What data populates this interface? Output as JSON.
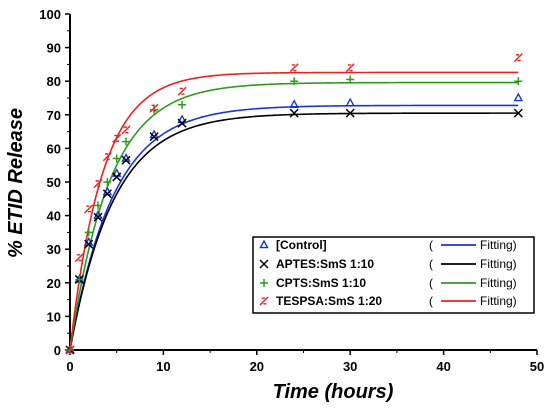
{
  "chart_data": {
    "type": "scatter",
    "title": "",
    "xlabel": "Time (hours)",
    "ylabel": "% ETID Release",
    "xlim": [
      0,
      50
    ],
    "ylim": [
      0,
      100
    ],
    "xticks": [
      0,
      10,
      20,
      30,
      40,
      50
    ],
    "yticks": [
      0,
      10,
      20,
      30,
      40,
      50,
      60,
      70,
      80,
      90,
      100
    ],
    "grid": false,
    "legend_position": "bottom-right",
    "x": [
      0,
      1,
      2,
      3,
      4,
      5,
      6,
      9,
      12,
      24,
      30,
      48
    ],
    "series": [
      {
        "name": "[Control]",
        "fit_label": "Fitting",
        "marker": "triangle",
        "color": "#1a35d6",
        "values": [
          0,
          21,
          32,
          40,
          47,
          52.5,
          57,
          64,
          68.5,
          73,
          73.5,
          75
        ],
        "fit_plateau": 72.8,
        "fit_rate": 0.215
      },
      {
        "name": "APTES:SmS 1:10",
        "fit_label": "Fitting",
        "marker": "x",
        "color": "#000000",
        "values": [
          0,
          21,
          31.5,
          39.5,
          46.5,
          51.5,
          56.5,
          63.5,
          67.5,
          70.5,
          70.5,
          70.5
        ],
        "fit_plateau": 70.5,
        "fit_rate": 0.215
      },
      {
        "name": "CPTS:SmS 1:10",
        "fit_label": "Fitting",
        "marker": "plus",
        "color": "#2f9a1c",
        "values": [
          0,
          21,
          35,
          43,
          50,
          57,
          62,
          71.5,
          73,
          80,
          80.5,
          80
        ],
        "fit_plateau": 79.6,
        "fit_rate": 0.235
      },
      {
        "name": "TESPSA:SmS 1:20",
        "fit_label": "Fitting",
        "marker": "slash",
        "color": "#e8221d",
        "values": [
          0,
          27.5,
          42,
          49.5,
          57.5,
          63,
          65.5,
          72,
          77,
          84,
          84,
          87
        ],
        "fit_plateau": 82.6,
        "fit_rate": 0.29
      }
    ]
  }
}
